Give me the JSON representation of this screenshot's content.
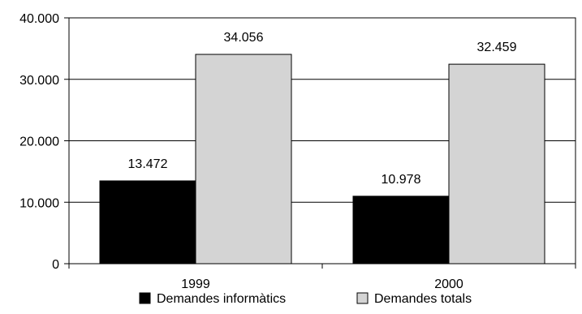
{
  "chart_data": {
    "type": "bar",
    "categories": [
      "1999",
      "2000"
    ],
    "series": [
      {
        "name": "Demandes informàtics",
        "values": [
          13472,
          10978
        ],
        "data_labels": [
          "13.472",
          "10.978"
        ],
        "color": "#000000"
      },
      {
        "name": "Demandes totals",
        "values": [
          34056,
          32459
        ],
        "data_labels": [
          "34.056",
          "32.459"
        ],
        "color": "#d4d4d4"
      }
    ],
    "y_ticks": [
      0,
      10000,
      20000,
      30000,
      40000
    ],
    "y_tick_labels": [
      "0",
      "10.000",
      "20.000",
      "30.000",
      "40.000"
    ],
    "ylim": [
      0,
      40000
    ],
    "grid": true,
    "legend_position": "bottom"
  }
}
